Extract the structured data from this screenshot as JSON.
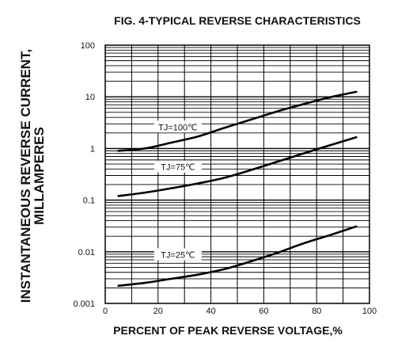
{
  "chart_data": {
    "type": "line",
    "title": "FIG. 4-TYPICAL REVERSE CHARACTERISTICS",
    "xlabel": "PERCENT OF PEAK REVERSE VOLTAGE,%",
    "ylabel_line1": "INSTANTANEOUS REVERSE CURRENT,",
    "ylabel_line2": "MILLAMPERES",
    "xlim": [
      0,
      100
    ],
    "ylim": [
      0.001,
      100
    ],
    "yscale": "log",
    "grid": true,
    "x_ticks": [
      0,
      20,
      40,
      60,
      80,
      100
    ],
    "x_tick_labels": [
      "0",
      "20",
      "40",
      "60",
      "80",
      "100"
    ],
    "y_ticks": [
      0.001,
      0.01,
      0.1,
      1,
      10,
      100
    ],
    "y_tick_labels": [
      "0.001",
      "0.01",
      "0.1",
      "1",
      "10",
      "100"
    ],
    "series": [
      {
        "name": "TJ=100℃",
        "x": [
          5,
          15,
          25,
          35,
          45,
          55,
          65,
          75,
          85,
          95
        ],
        "y": [
          0.9,
          1.0,
          1.3,
          1.7,
          2.5,
          3.6,
          5.2,
          7.2,
          9.8,
          12.5
        ]
      },
      {
        "name": "TJ=75℃",
        "x": [
          5,
          15,
          25,
          35,
          45,
          55,
          65,
          75,
          85,
          95
        ],
        "y": [
          0.12,
          0.14,
          0.17,
          0.21,
          0.27,
          0.38,
          0.55,
          0.8,
          1.15,
          1.65
        ]
      },
      {
        "name": "TJ=25℃",
        "x": [
          5,
          15,
          25,
          35,
          45,
          55,
          65,
          75,
          85,
          95
        ],
        "y": [
          0.0022,
          0.0025,
          0.003,
          0.0036,
          0.0046,
          0.0065,
          0.0095,
          0.0145,
          0.021,
          0.031
        ]
      }
    ]
  }
}
